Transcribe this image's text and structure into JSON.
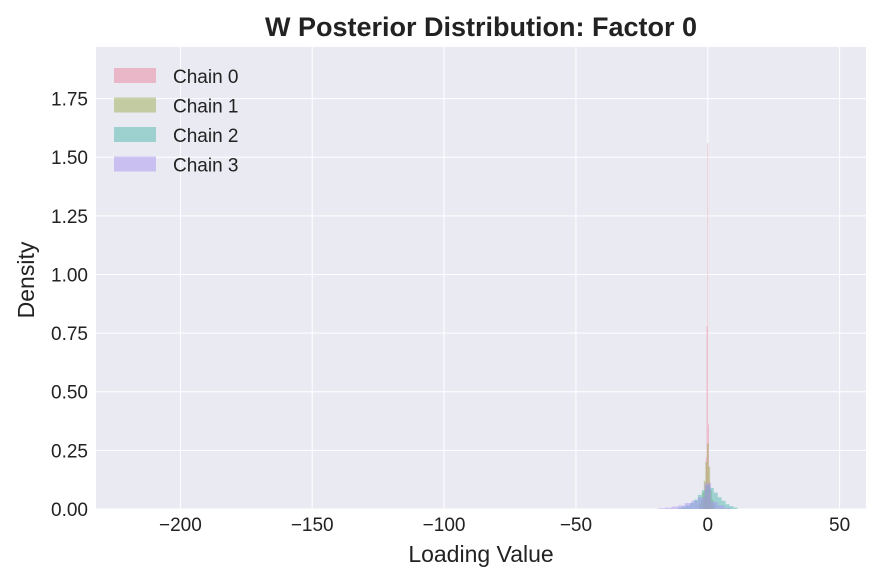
{
  "chart_data": {
    "type": "histogram",
    "title": "W Posterior Distribution: Factor 0",
    "xlabel": "Loading Value",
    "ylabel": "Density",
    "xlim": [
      -232,
      60
    ],
    "ylim": [
      0,
      1.97
    ],
    "x_ticks": [
      -200,
      -150,
      -100,
      -50,
      0,
      50
    ],
    "x_tick_labels": [
      "−200",
      "−150",
      "−100",
      "−50",
      "0",
      "50"
    ],
    "y_ticks": [
      0.0,
      0.25,
      0.5,
      0.75,
      1.0,
      1.25,
      1.5,
      1.75
    ],
    "y_tick_labels": [
      "0.00",
      "0.25",
      "0.50",
      "0.75",
      "1.00",
      "1.25",
      "1.50",
      "1.75"
    ],
    "grid": true,
    "legend_position": "top-left",
    "series": [
      {
        "name": "Chain 0",
        "color": "#e8849c",
        "opacity": 0.5,
        "bin_width": 0.3,
        "bins": [
          {
            "x": -1.5,
            "y": 0.03
          },
          {
            "x": -1.2,
            "y": 0.05
          },
          {
            "x": -0.9,
            "y": 0.1
          },
          {
            "x": -0.6,
            "y": 0.22
          },
          {
            "x": -0.3,
            "y": 0.78
          },
          {
            "x": 0.0,
            "y": 1.56
          },
          {
            "x": 0.3,
            "y": 0.36
          },
          {
            "x": 0.6,
            "y": 0.12
          },
          {
            "x": 0.9,
            "y": 0.05
          },
          {
            "x": 1.2,
            "y": 0.02
          }
        ]
      },
      {
        "name": "Chain 1",
        "color": "#9aac52",
        "opacity": 0.5,
        "bin_width": 0.6,
        "bins": [
          {
            "x": -3.0,
            "y": 0.02
          },
          {
            "x": -2.4,
            "y": 0.04
          },
          {
            "x": -1.8,
            "y": 0.07
          },
          {
            "x": -1.2,
            "y": 0.12
          },
          {
            "x": -0.6,
            "y": 0.2
          },
          {
            "x": 0.0,
            "y": 0.28
          },
          {
            "x": 0.6,
            "y": 0.18
          },
          {
            "x": 1.2,
            "y": 0.08
          },
          {
            "x": 1.8,
            "y": 0.04
          },
          {
            "x": 2.4,
            "y": 0.02
          }
        ]
      },
      {
        "name": "Chain 2",
        "color": "#4fb8ae",
        "opacity": 0.5,
        "bin_width": 1.5,
        "bins": [
          {
            "x": -10.5,
            "y": 0.005
          },
          {
            "x": -9.0,
            "y": 0.01
          },
          {
            "x": -7.5,
            "y": 0.015
          },
          {
            "x": -6.0,
            "y": 0.025
          },
          {
            "x": -4.5,
            "y": 0.04
          },
          {
            "x": -3.0,
            "y": 0.06
          },
          {
            "x": -1.5,
            "y": 0.08
          },
          {
            "x": 0.0,
            "y": 0.1
          },
          {
            "x": 1.5,
            "y": 0.09
          },
          {
            "x": 3.0,
            "y": 0.07
          },
          {
            "x": 4.5,
            "y": 0.05
          },
          {
            "x": 6.0,
            "y": 0.035
          },
          {
            "x": 7.5,
            "y": 0.02
          },
          {
            "x": 9.0,
            "y": 0.012
          },
          {
            "x": 10.5,
            "y": 0.006
          }
        ]
      },
      {
        "name": "Chain 3",
        "color": "#a894f0",
        "opacity": 0.5,
        "bin_width": 2.5,
        "bins": [
          {
            "x": -17.5,
            "y": 0.003
          },
          {
            "x": -15.0,
            "y": 0.005
          },
          {
            "x": -12.5,
            "y": 0.01
          },
          {
            "x": -10.0,
            "y": 0.015
          },
          {
            "x": -7.5,
            "y": 0.025
          },
          {
            "x": -5.0,
            "y": 0.035
          },
          {
            "x": -2.5,
            "y": 0.05
          },
          {
            "x": 0.0,
            "y": 0.11
          },
          {
            "x": 2.5,
            "y": 0.03
          },
          {
            "x": 5.0,
            "y": 0.015
          },
          {
            "x": 7.5,
            "y": 0.005
          }
        ]
      }
    ]
  }
}
